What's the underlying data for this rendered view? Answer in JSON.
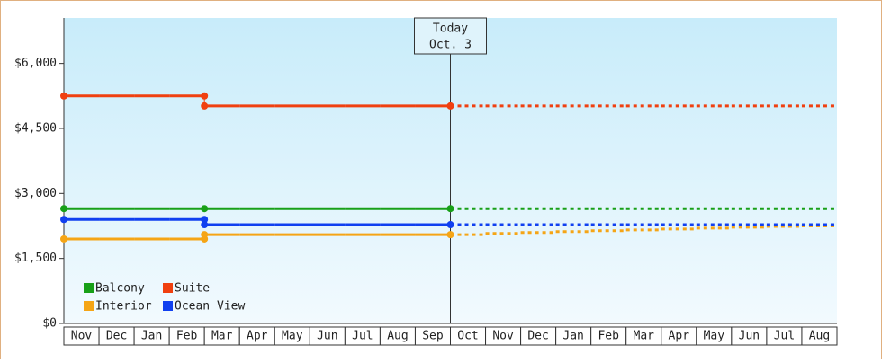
{
  "chart_data": {
    "type": "step",
    "categories": [
      "Nov",
      "Dec",
      "Jan",
      "Feb",
      "Mar",
      "Apr",
      "May",
      "Jun",
      "Jul",
      "Aug",
      "Sep",
      "Oct",
      "Nov",
      "Dec",
      "Jan",
      "Feb",
      "Mar",
      "Apr",
      "May",
      "Jun",
      "Jul",
      "Aug"
    ],
    "today_index": 11,
    "today_label": [
      "Today",
      "Oct. 3"
    ],
    "ylim": [
      0,
      7050
    ],
    "yticks": [
      {
        "value": 0,
        "label": "$0"
      },
      {
        "value": 1500,
        "label": "$1,500"
      },
      {
        "value": 3000,
        "label": "$3,000"
      },
      {
        "value": 4500,
        "label": "$4,500"
      },
      {
        "value": 6000,
        "label": "$6,000"
      }
    ],
    "series": [
      {
        "name": "Balcony",
        "color": "#18a018",
        "values": [
          2650,
          2650,
          2650,
          2650,
          2650,
          2650,
          2650,
          2650,
          2650,
          2650,
          2650,
          2650,
          2650,
          2650,
          2650,
          2650,
          2650,
          2650,
          2650,
          2650,
          2650,
          2650
        ]
      },
      {
        "name": "Suite",
        "color": "#f04010",
        "values": [
          5250,
          5250,
          5250,
          5250,
          5020,
          5020,
          5020,
          5020,
          5020,
          5020,
          5020,
          5020,
          5020,
          5020,
          5020,
          5020,
          5020,
          5020,
          5020,
          5020,
          5020,
          5020
        ]
      },
      {
        "name": "Interior",
        "color": "#f5a516",
        "values": [
          1950,
          1950,
          1950,
          1950,
          2050,
          2050,
          2050,
          2050,
          2050,
          2050,
          2050,
          2050,
          2080,
          2100,
          2120,
          2140,
          2160,
          2180,
          2200,
          2220,
          2240,
          2250
        ]
      },
      {
        "name": "Ocean View",
        "color": "#1040f0",
        "values": [
          2400,
          2400,
          2400,
          2400,
          2280,
          2280,
          2280,
          2280,
          2280,
          2280,
          2280,
          2280,
          2280,
          2280,
          2280,
          2280,
          2280,
          2280,
          2280,
          2280,
          2280,
          2280
        ]
      }
    ]
  }
}
